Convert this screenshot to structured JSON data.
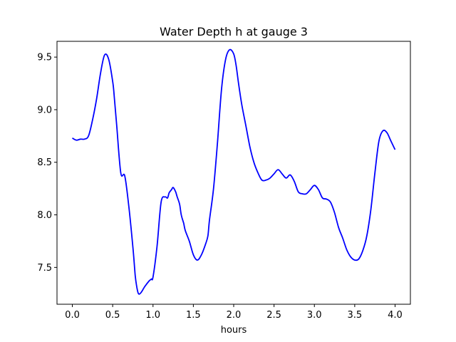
{
  "chart_data": {
    "type": "line",
    "title": "Water Depth h at gauge 3",
    "xlabel": "hours",
    "ylabel": "",
    "xlim": [
      -0.19,
      4.19
    ],
    "ylim": [
      7.15,
      9.65
    ],
    "xticks": [
      "0.0",
      "0.5",
      "1.0",
      "1.5",
      "2.0",
      "2.5",
      "3.0",
      "3.5",
      "4.0"
    ],
    "yticks": [
      "7.5",
      "8.0",
      "8.5",
      "9.0",
      "9.5"
    ],
    "grid": false,
    "series": [
      {
        "color": "#0000ff",
        "x": [
          0.0,
          0.05,
          0.1,
          0.15,
          0.2,
          0.25,
          0.3,
          0.35,
          0.4,
          0.45,
          0.5,
          0.52,
          0.55,
          0.6,
          0.65,
          0.7,
          0.75,
          0.78,
          0.8,
          0.82,
          0.85,
          0.9,
          0.95,
          0.98,
          1.0,
          1.05,
          1.1,
          1.15,
          1.18,
          1.2,
          1.23,
          1.25,
          1.28,
          1.3,
          1.33,
          1.35,
          1.38,
          1.4,
          1.45,
          1.5,
          1.55,
          1.6,
          1.65,
          1.68,
          1.7,
          1.75,
          1.8,
          1.85,
          1.9,
          1.95,
          2.0,
          2.03,
          2.06,
          2.1,
          2.15,
          2.2,
          2.25,
          2.3,
          2.35,
          2.4,
          2.45,
          2.5,
          2.55,
          2.6,
          2.65,
          2.7,
          2.75,
          2.8,
          2.85,
          2.9,
          2.95,
          3.0,
          3.05,
          3.1,
          3.15,
          3.2,
          3.25,
          3.3,
          3.35,
          3.4,
          3.45,
          3.5,
          3.55,
          3.6,
          3.65,
          3.7,
          3.75,
          3.8,
          3.85,
          3.9,
          3.95,
          4.0
        ],
        "y": [
          8.73,
          8.71,
          8.72,
          8.72,
          8.75,
          8.9,
          9.1,
          9.35,
          9.52,
          9.48,
          9.27,
          9.12,
          8.85,
          8.4,
          8.37,
          8.08,
          7.7,
          7.42,
          7.31,
          7.25,
          7.26,
          7.32,
          7.37,
          7.39,
          7.41,
          7.7,
          8.12,
          8.17,
          8.16,
          8.21,
          8.24,
          8.26,
          8.22,
          8.17,
          8.1,
          8.0,
          7.92,
          7.85,
          7.75,
          7.62,
          7.57,
          7.62,
          7.72,
          7.8,
          7.95,
          8.25,
          8.7,
          9.2,
          9.48,
          9.57,
          9.53,
          9.42,
          9.25,
          9.05,
          8.85,
          8.65,
          8.5,
          8.4,
          8.33,
          8.33,
          8.35,
          8.39,
          8.43,
          8.39,
          8.35,
          8.38,
          8.32,
          8.22,
          8.2,
          8.2,
          8.24,
          8.28,
          8.24,
          8.16,
          8.15,
          8.12,
          8.02,
          7.88,
          7.78,
          7.67,
          7.6,
          7.57,
          7.58,
          7.66,
          7.8,
          8.05,
          8.4,
          8.7,
          8.8,
          8.78,
          8.7,
          8.62
        ]
      }
    ]
  }
}
